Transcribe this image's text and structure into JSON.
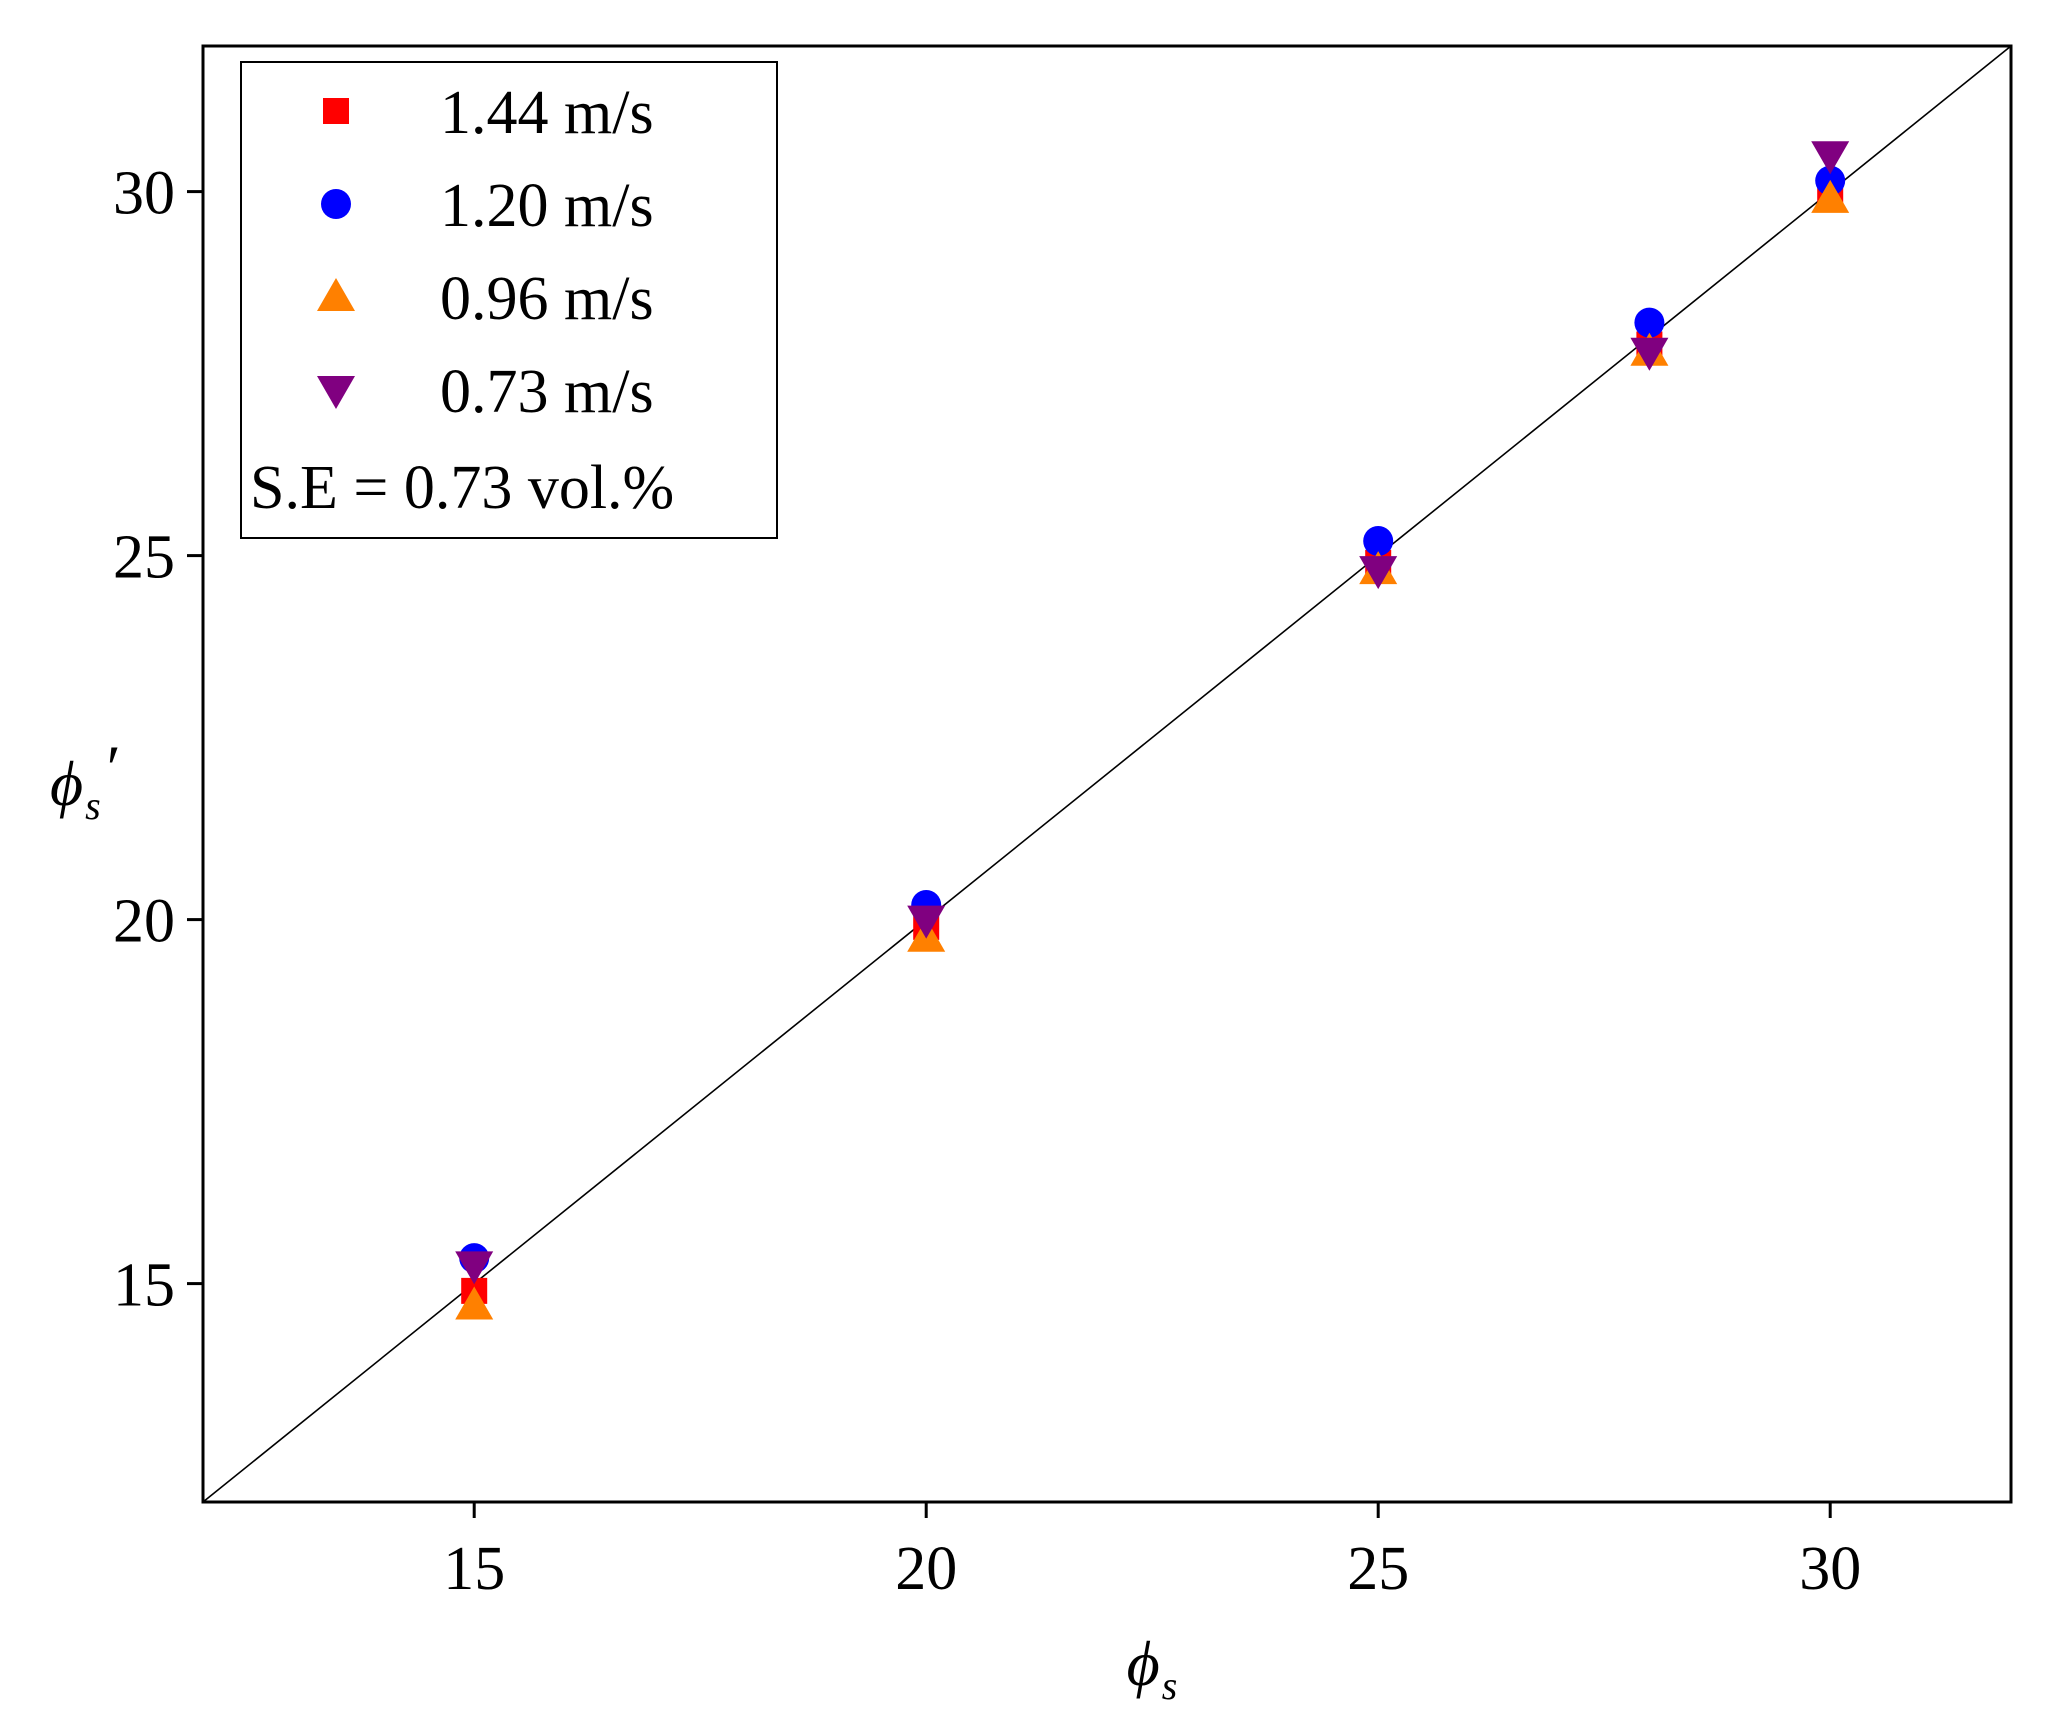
{
  "chart_data": {
    "type": "scatter",
    "title": "",
    "xlabel": {
      "symbol": "ϕ",
      "subscript": "s",
      "prime": ""
    },
    "ylabel": {
      "symbol": "ϕ",
      "subscript": "s",
      "prime": "′"
    },
    "xlim": [
      12,
      32
    ],
    "ylim": [
      12,
      32
    ],
    "xticks": [
      15,
      20,
      25,
      30
    ],
    "yticks": [
      15,
      20,
      25,
      30
    ],
    "xtick_labels": [
      "15",
      "20",
      "25",
      "30"
    ],
    "ytick_labels": [
      "15",
      "20",
      "25",
      "30"
    ],
    "grid": false,
    "legend_position": "top-left",
    "reference_line": {
      "type": "y=x",
      "from": [
        12,
        12
      ],
      "to": [
        32,
        32
      ],
      "color": "#000000"
    },
    "annotation": "S.E = 0.73 vol.%",
    "series": [
      {
        "name": "1.44 m/s",
        "marker": "square",
        "color": "#ff0000",
        "x": [
          15,
          20,
          25,
          28,
          30
        ],
        "y": [
          14.9,
          19.9,
          24.9,
          27.9,
          30.0
        ]
      },
      {
        "name": "1.20 m/s",
        "marker": "circle",
        "color": "#0000ff",
        "x": [
          15,
          20,
          25,
          28,
          30
        ],
        "y": [
          15.35,
          20.2,
          25.2,
          28.2,
          30.15
        ]
      },
      {
        "name": "0.96 m/s",
        "marker": "triangle-up",
        "color": "#ff8000",
        "x": [
          15,
          20,
          25,
          28,
          30
        ],
        "y": [
          14.7,
          19.75,
          24.8,
          27.8,
          29.9
        ]
      },
      {
        "name": "0.73 m/s",
        "marker": "triangle-down",
        "color": "#800080",
        "x": [
          15,
          20,
          25,
          28,
          30
        ],
        "y": [
          15.25,
          20.0,
          24.8,
          27.8,
          30.5
        ]
      }
    ]
  }
}
